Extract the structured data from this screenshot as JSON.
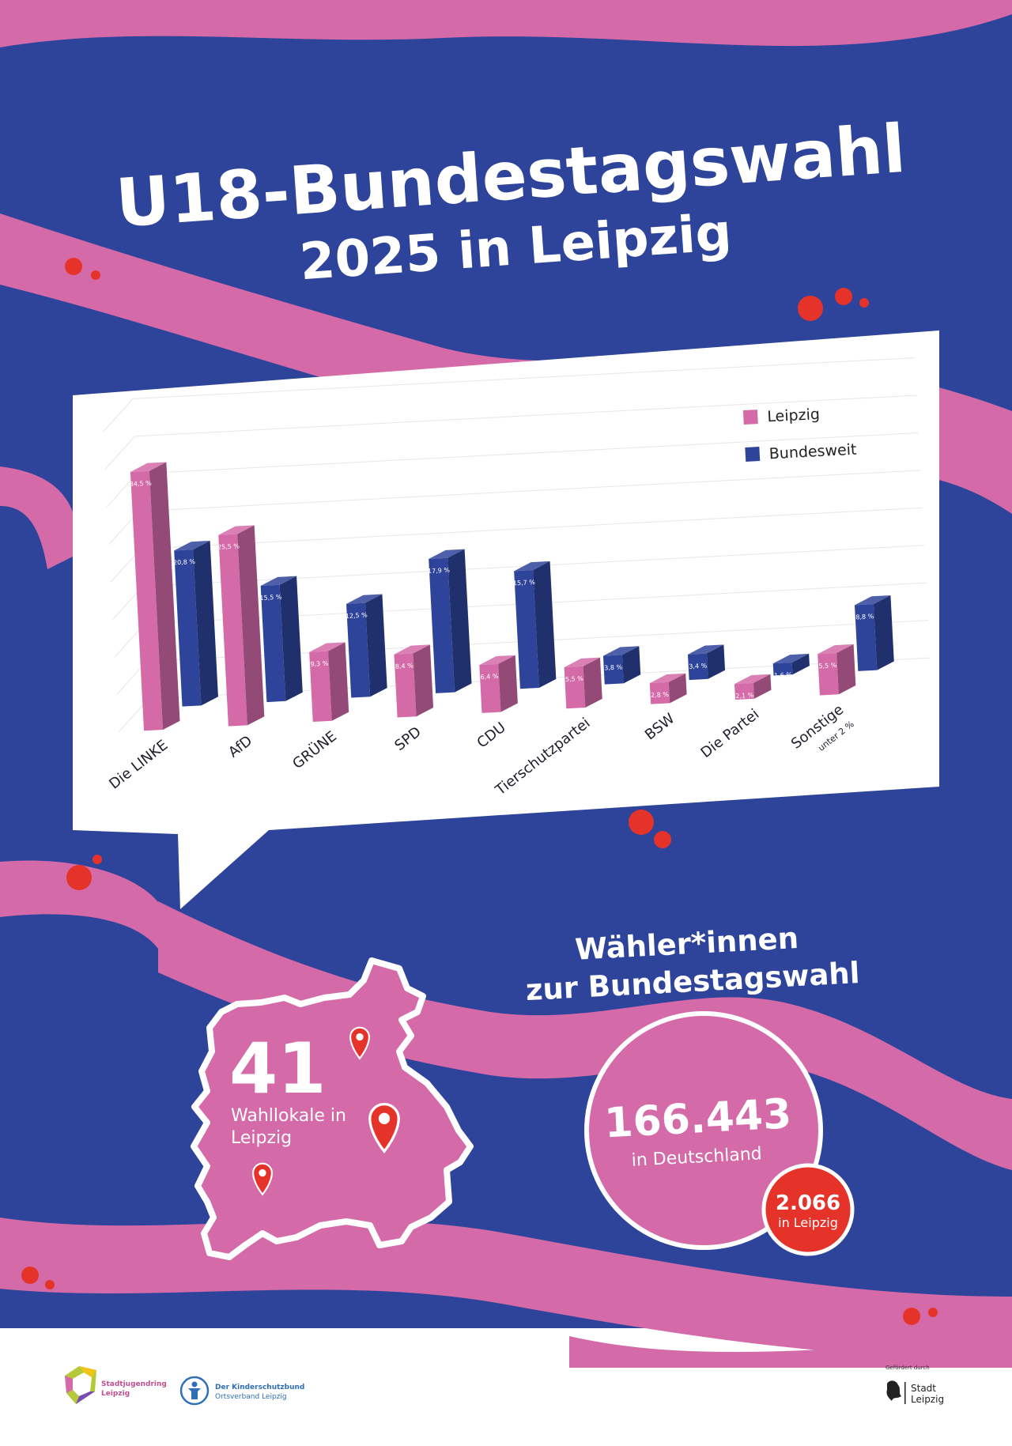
{
  "title_line1": "U18-Bundestagswahl",
  "title_line2": "2025 in Leipzig",
  "colors": {
    "background": "#2e449a",
    "ribbon": "#d46aa8",
    "leipzig": "#d46aa8",
    "bundesweit": "#2e449a",
    "accent_red": "#e5332a"
  },
  "chart_data": {
    "type": "bar",
    "categories": [
      "Die LINKE",
      "AfD",
      "GRÜNE",
      "SPD",
      "CDU",
      "Tierschutzpartei",
      "BSW",
      "Die Partei",
      "Sonstige"
    ],
    "category_note": "unter 2 %",
    "series": [
      {
        "name": "Leipzig",
        "values": [
          34.5,
          25.5,
          9.3,
          8.4,
          6.4,
          5.5,
          2.8,
          2.1,
          5.5
        ],
        "labels": [
          "34,5 %",
          "25,5 %",
          "9,3 %",
          "8,4 %",
          "6,4 %",
          "5,5 %",
          "2,8 %",
          "2,1 %",
          "5,5 %"
        ]
      },
      {
        "name": "Bundesweit",
        "values": [
          20.8,
          15.5,
          12.5,
          17.9,
          15.7,
          3.8,
          3.4,
          1.6,
          8.8
        ],
        "labels": [
          "20,8 %",
          "15,5 %",
          "12,5 %",
          "17,9 %",
          "15,7 %",
          "3,8 %",
          "3,4 %",
          "1,6 %",
          "8,8 %"
        ]
      }
    ],
    "ylim": [
      0,
      40
    ],
    "grid": true,
    "legend_position": "top-right"
  },
  "voters": {
    "heading_line1": "Wähler*innen",
    "heading_line2": "zur Bundestagswahl",
    "total_number": "166.443",
    "total_label": "in Deutschland",
    "leipzig_number": "2.066",
    "leipzig_label": "in Leipzig"
  },
  "polling": {
    "number": "41",
    "label_line1": "Wahllokale in",
    "label_line2": "Leipzig"
  },
  "footer": {
    "logo1_line1": "Stadtjugendring",
    "logo1_line2": "Leipzig",
    "logo2_line1": "Der Kinderschutzbund",
    "logo2_line2": "Ortsverband Leipzig",
    "funded_by": "Gefördert durch",
    "logo3_line1": "Stadt",
    "logo3_line2": "Leipzig"
  }
}
